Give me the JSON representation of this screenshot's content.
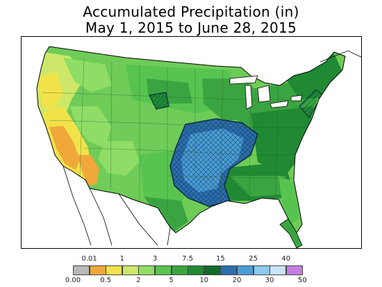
{
  "title": {
    "line1": "Accumulated Precipitation (in)",
    "line2": "May 1, 2015 to June 28, 2015"
  },
  "legend": {
    "top_labels": [
      "0.01",
      "1",
      "3",
      "7.5",
      "15",
      "25",
      "40"
    ],
    "bottom_labels": [
      "0.00",
      "0.5",
      "2",
      "5",
      "10",
      "20",
      "30",
      "50"
    ],
    "colors": [
      "#b8b8b8",
      "#f0a83a",
      "#f2e24a",
      "#cde868",
      "#8fdd66",
      "#58c450",
      "#3aa540",
      "#1f8a33",
      "#0f6b28",
      "#2c6fb0",
      "#4a9ed8",
      "#8ccaf0",
      "#c8e4f8",
      "#c67ee0"
    ]
  }
}
